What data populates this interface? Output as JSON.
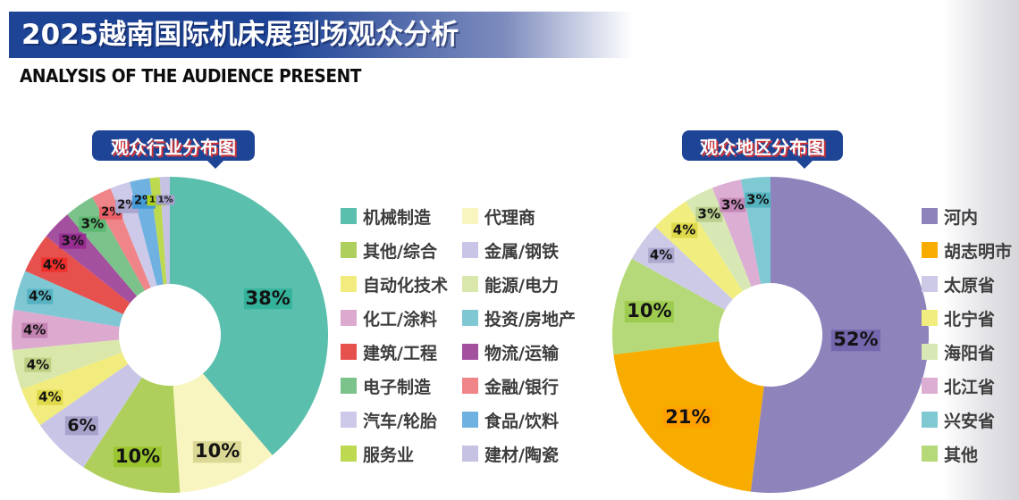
{
  "header": {
    "title": "2025越南国际机床展到场观众分析",
    "subtitle": "ANALYSIS OF THE AUDIENCE PRESENT"
  },
  "theme": {
    "header_blue": "#1e4496",
    "bubble_blue": "#1e4496",
    "bubble_text_shadow_red": "#cf3337",
    "edge_gradient_gray": "#d6d6da",
    "percent_text_color": "#131313",
    "legend_text_color": "#3d3d3d"
  },
  "chart_data": [
    {
      "type": "pie",
      "subtype": "donut",
      "title": "观众行业分布图",
      "unit": "%",
      "start_angle": "12-oclock",
      "direction": "clockwise",
      "slices": [
        {
          "label": "机械制造",
          "value": 38,
          "color": "#5bbfad"
        },
        {
          "label": "代理商",
          "value": 10,
          "color": "#f8f5c0"
        },
        {
          "label": "其他/综合",
          "value": 10,
          "color": "#aecf5b"
        },
        {
          "label": "金属/钢铁",
          "value": 6,
          "color": "#c9c5e6"
        },
        {
          "label": "自动化技术",
          "value": 4,
          "color": "#f1ec7d"
        },
        {
          "label": "能源/电力",
          "value": 4,
          "color": "#d9e7ab"
        },
        {
          "label": "化工/涂料",
          "value": 4,
          "color": "#dcaacf"
        },
        {
          "label": "投资/房地产",
          "value": 4,
          "color": "#7fc7d3"
        },
        {
          "label": "建筑/工程",
          "value": 4,
          "color": "#e6504d"
        },
        {
          "label": "物流/运输",
          "value": 3,
          "color": "#a3509e"
        },
        {
          "label": "电子制造",
          "value": 3,
          "color": "#7cc28b"
        },
        {
          "label": "金融/银行",
          "value": 2,
          "color": "#ef8489"
        },
        {
          "label": "汽车/轮胎",
          "value": 2,
          "color": "#cdc9e8"
        },
        {
          "label": "食品/饮料",
          "value": 2,
          "color": "#6fb2e2"
        },
        {
          "label": "服务业",
          "value": 1,
          "color": "#bcd94f"
        },
        {
          "label": "建材/陶瓷",
          "value": 1,
          "color": "#c6c2e3"
        }
      ],
      "legend": {
        "columns": 2,
        "order": [
          0,
          2,
          4,
          6,
          8,
          10,
          12,
          14,
          1,
          3,
          5,
          7,
          9,
          11,
          13,
          15
        ]
      }
    },
    {
      "type": "pie",
      "subtype": "donut",
      "title": "观众地区分布图",
      "unit": "%",
      "start_angle": "12-oclock",
      "direction": "clockwise",
      "slices": [
        {
          "label": "河内",
          "value": 52,
          "color": "#8f83bc"
        },
        {
          "label": "胡志明市",
          "value": 21,
          "color": "#f8ac00"
        },
        {
          "label": "其他",
          "value": 10,
          "color": "#b5d978"
        },
        {
          "label": "太原省",
          "value": 4,
          "color": "#cdcae8"
        },
        {
          "label": "北宁省",
          "value": 4,
          "color": "#f1ed7e"
        },
        {
          "label": "海阳省",
          "value": 3,
          "color": "#d8e8b4"
        },
        {
          "label": "北江省",
          "value": 3,
          "color": "#dcaed3"
        },
        {
          "label": "兴安省",
          "value": 3,
          "color": "#7fc9d2"
        }
      ],
      "legend": {
        "columns": 1,
        "order": [
          0,
          1,
          3,
          4,
          5,
          6,
          7,
          2
        ]
      }
    }
  ]
}
